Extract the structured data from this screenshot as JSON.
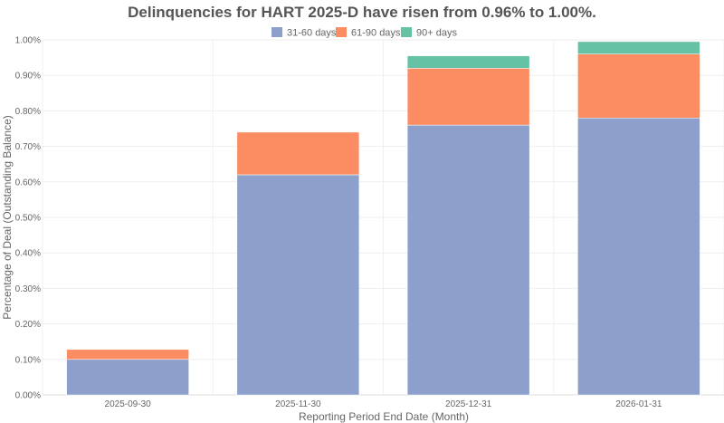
{
  "chart_data": {
    "type": "bar",
    "stacked": true,
    "title": "Delinquencies for HART 2025-D have risen from 0.96% to 1.00%.",
    "xlabel": "Reporting Period End Date (Month)",
    "ylabel": "Percentage of Deal (Outstanding Balance)",
    "categories": [
      "2025-09-30",
      "2025-11-30",
      "2025-12-31",
      "2026-01-31"
    ],
    "series": [
      {
        "name": "31-60 days",
        "color": "#8da0cb",
        "values": [
          0.1,
          0.62,
          0.76,
          0.78
        ]
      },
      {
        "name": "61-90 days",
        "color": "#fc8d62",
        "values": [
          0.028,
          0.12,
          0.16,
          0.18
        ]
      },
      {
        "name": "90+ days",
        "color": "#66c2a5",
        "values": [
          0.0,
          0.0,
          0.035,
          0.035
        ]
      }
    ],
    "ylim": [
      0,
      1.0
    ],
    "yticks": [
      "0.00%",
      "0.10%",
      "0.20%",
      "0.30%",
      "0.40%",
      "0.50%",
      "0.60%",
      "0.70%",
      "0.80%",
      "0.90%",
      "1.00%"
    ],
    "grid": true,
    "legend": "top-center"
  }
}
